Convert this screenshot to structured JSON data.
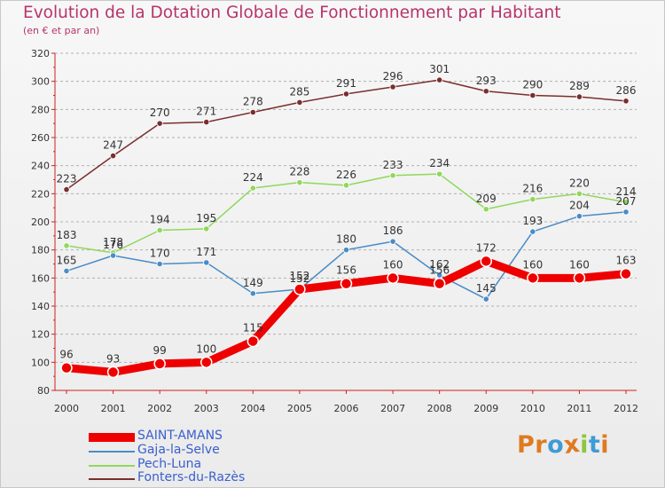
{
  "header": {
    "title": "Evolution de la Dotation Globale de Fonctionnement par Habitant",
    "subtitle": "(en € et par an)"
  },
  "logo": {
    "text": "Proxiti",
    "letters": [
      "P",
      "r",
      "o",
      "x",
      "i",
      "t",
      "i"
    ],
    "colors": [
      "#e07a1f",
      "#e07a1f",
      "#3f9bd6",
      "#e07a1f",
      "#8dc63f",
      "#3f9bd6",
      "#e07a1f"
    ]
  },
  "chart_data": {
    "type": "line",
    "title": "Evolution de la Dotation Globale de Fonctionnement par Habitant",
    "subtitle": "(en € et par an)",
    "xlabel": "",
    "ylabel": "",
    "x": [
      "2000",
      "2001",
      "2002",
      "2003",
      "2004",
      "2005",
      "2006",
      "2007",
      "2008",
      "2009",
      "2010",
      "2011",
      "2012"
    ],
    "ylim": [
      80,
      320
    ],
    "yticks": [
      80,
      100,
      120,
      140,
      160,
      180,
      200,
      220,
      240,
      260,
      280,
      300,
      320
    ],
    "grid": "horizontal dashed",
    "legend": "bottom-left",
    "series": [
      {
        "name": "SAINT-AMANS",
        "color": "#ee0000",
        "values": [
          96,
          93,
          99,
          100,
          115,
          152,
          156,
          160,
          156,
          172,
          160,
          160,
          163
        ]
      },
      {
        "name": "Gaja-la-Selve",
        "color": "#4a8cc6",
        "values": [
          165,
          176,
          170,
          171,
          149,
          152,
          180,
          186,
          162,
          145,
          193,
          204,
          207
        ]
      },
      {
        "name": "Pech-Luna",
        "color": "#8fd85c",
        "values": [
          183,
          178,
          194,
          195,
          224,
          228,
          226,
          233,
          234,
          209,
          216,
          220,
          214
        ]
      },
      {
        "name": "Fonters-du-Razès",
        "color": "#7a2e2e",
        "values": [
          223,
          247,
          270,
          271,
          278,
          285,
          291,
          296,
          301,
          293,
          290,
          289,
          286
        ]
      }
    ]
  }
}
